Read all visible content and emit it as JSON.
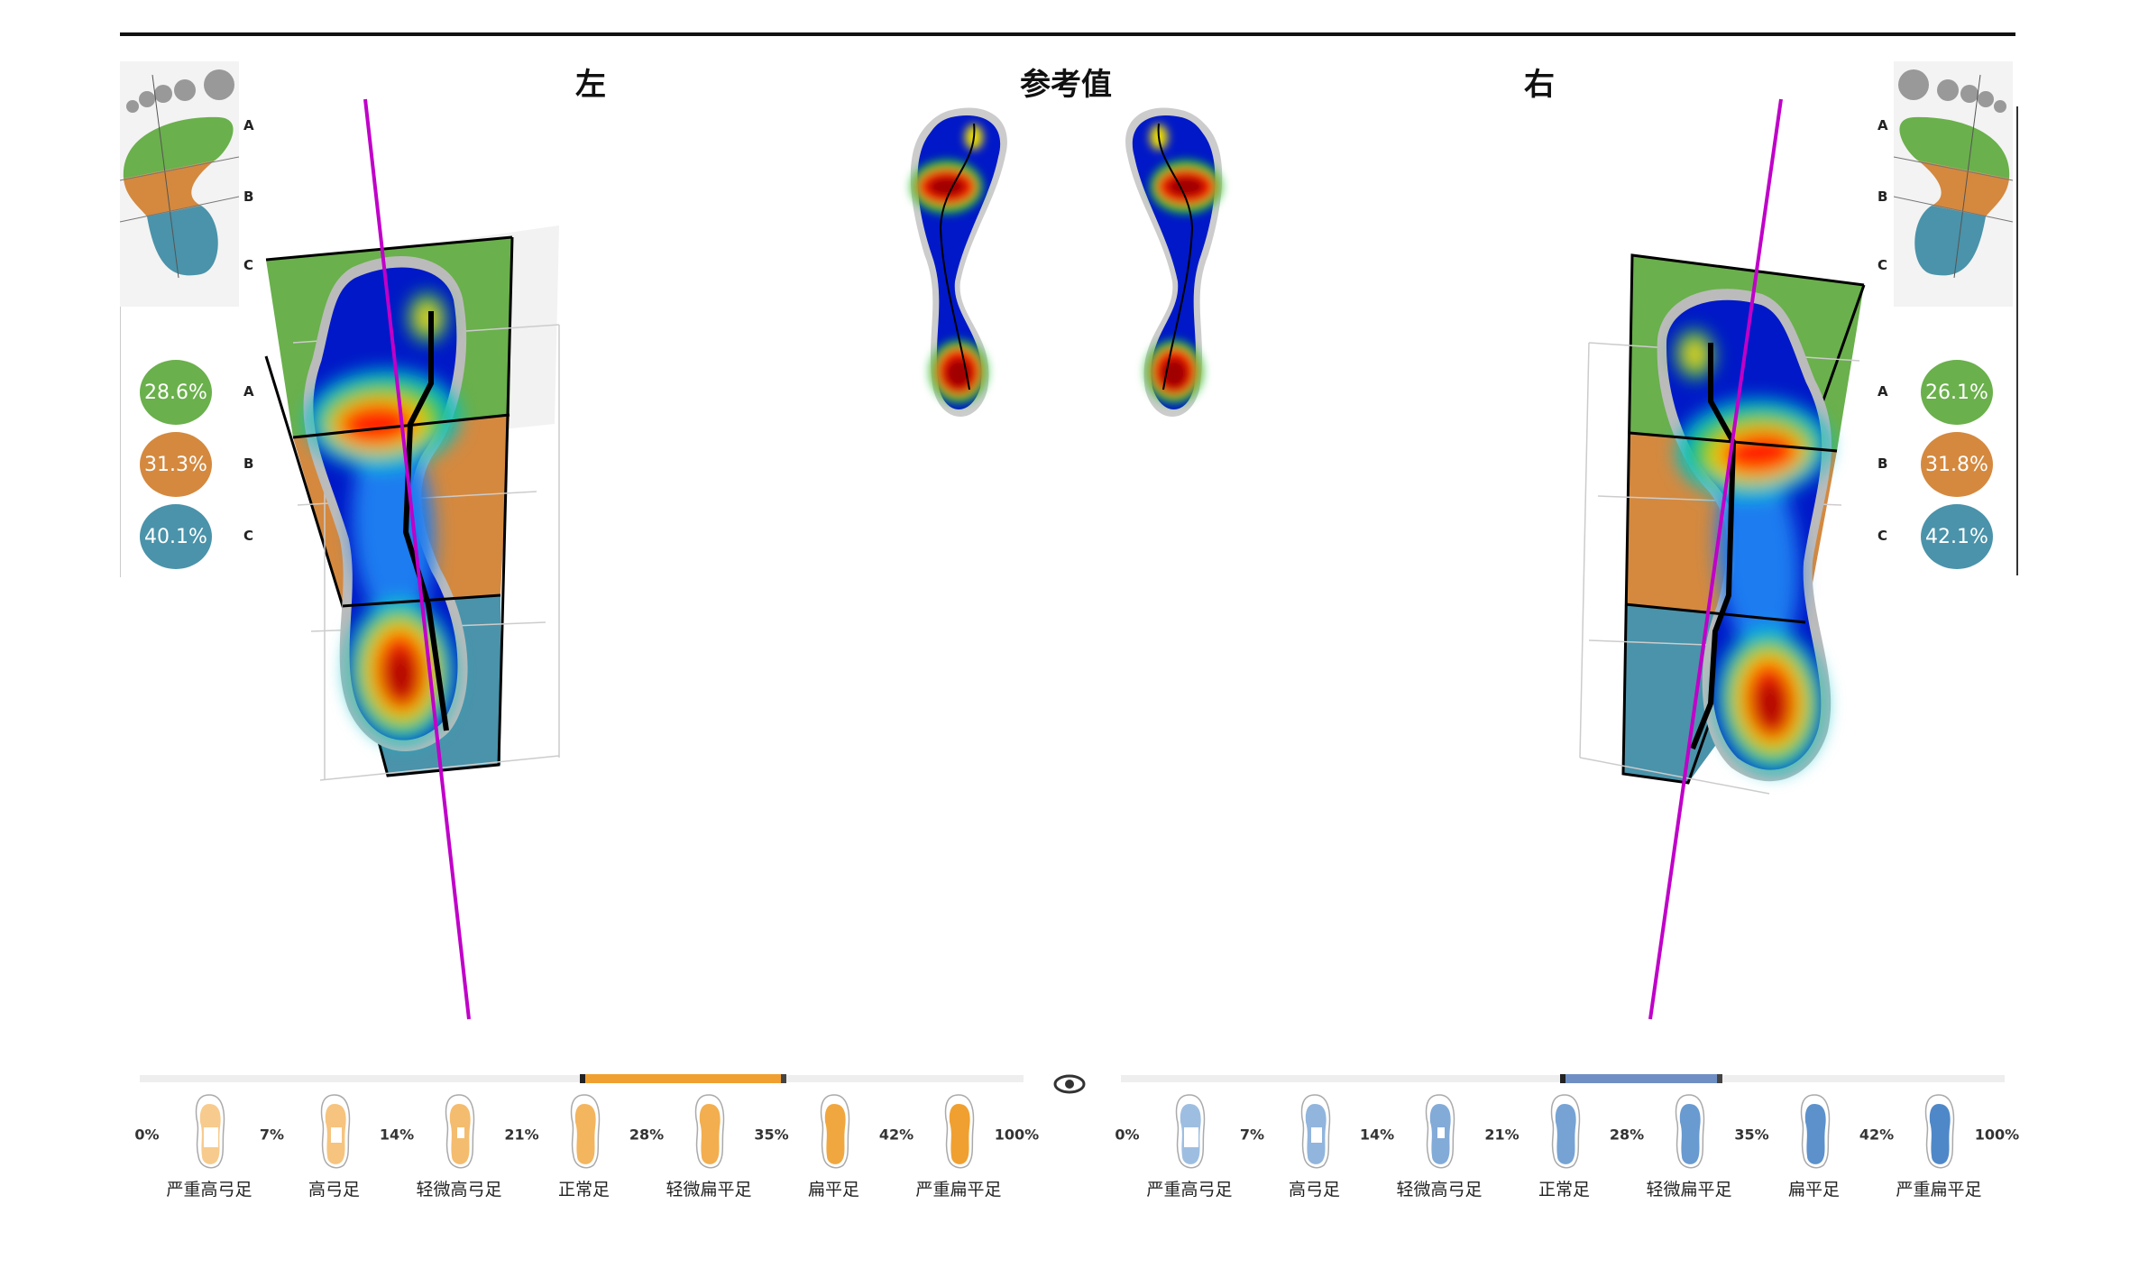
{
  "titles": {
    "left": "左",
    "reference": "参考值",
    "right": "右"
  },
  "zones": [
    "A",
    "B",
    "C"
  ],
  "left": {
    "percentages": [
      "28.6%",
      "31.3%",
      "40.1%"
    ]
  },
  "right": {
    "percentages": [
      "26.1%",
      "31.8%",
      "42.1%"
    ]
  },
  "colors": {
    "zoneA": "#6ab04c",
    "zoneB": "#d4893f",
    "zoneC": "#4a93aa",
    "magenta": "#c000c8",
    "leftScale": "#f0a030",
    "rightScale": "#6f8fc4"
  },
  "scale": {
    "thresholds": [
      "0%",
      "7%",
      "14%",
      "21%",
      "28%",
      "35%",
      "42%",
      "100%"
    ],
    "types": [
      "严重高弓足",
      "高弓足",
      "轻微高弓足",
      "正常足",
      "轻微扁平足",
      "扁平足",
      "严重扁平足"
    ],
    "left_range_percent": [
      21,
      35
    ],
    "right_range_percent": [
      28,
      35
    ]
  },
  "eye_icon": "eye-icon"
}
